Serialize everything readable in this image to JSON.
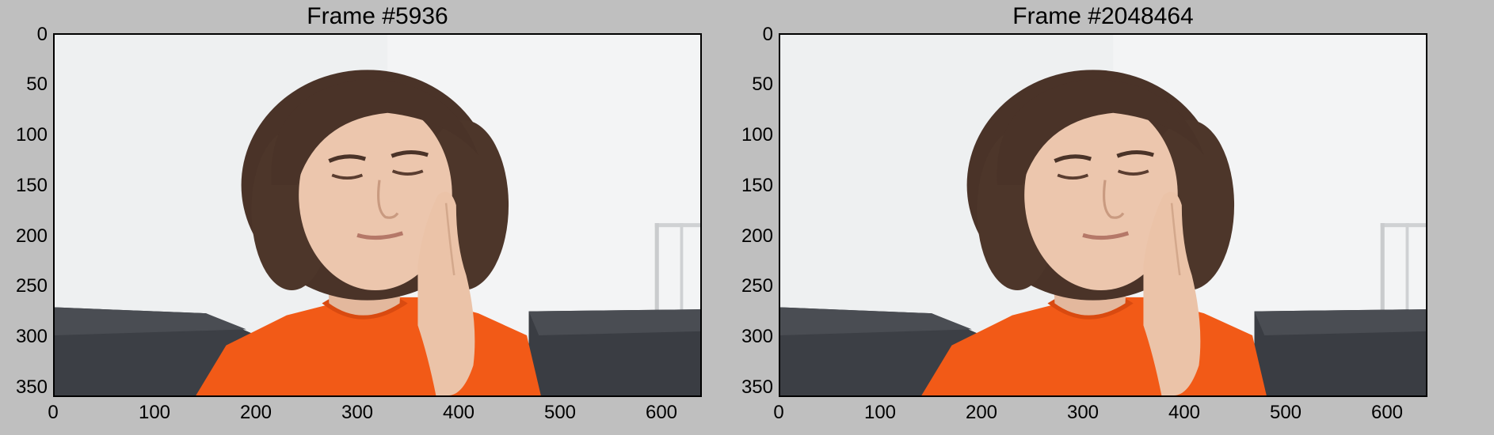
{
  "panels": [
    {
      "title": "Frame #5936",
      "yticks": [
        "0",
        "50",
        "100",
        "150",
        "200",
        "250",
        "300",
        "350"
      ],
      "xticks": [
        "0",
        "100",
        "200",
        "300",
        "400",
        "500",
        "600"
      ],
      "ylim": [
        0,
        360
      ],
      "xlim": [
        0,
        640
      ]
    },
    {
      "title": "Frame #2048464",
      "yticks": [
        "0",
        "50",
        "100",
        "150",
        "200",
        "250",
        "300",
        "350"
      ],
      "xticks": [
        "0",
        "100",
        "200",
        "300",
        "400",
        "500",
        "600"
      ],
      "ylim": [
        0,
        360
      ],
      "xlim": [
        0,
        640
      ]
    }
  ],
  "colors": {
    "background": "#bfbfbf",
    "wall": "#f1f2f3",
    "sofa": "#3b3e44",
    "shirt": "#f25a17",
    "hair": "#4a3328",
    "skin": "#e8c2a8"
  }
}
